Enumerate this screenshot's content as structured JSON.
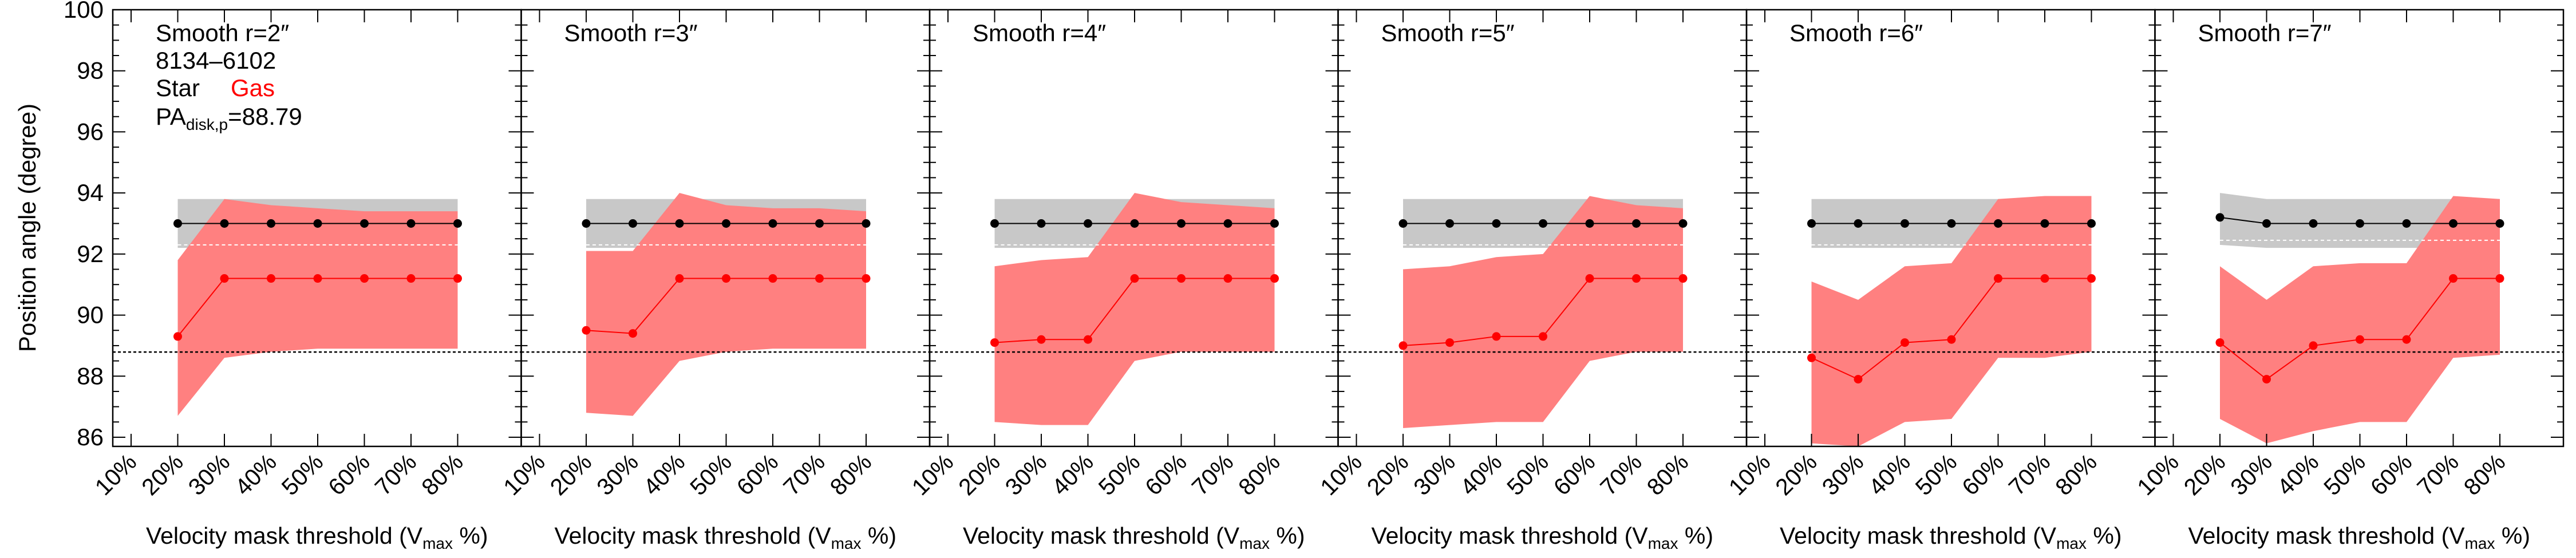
{
  "figure": {
    "ylabel": "Position angle (degree)",
    "xlabel_main": "Velocity mask threshold (V",
    "xlabel_sub": "max",
    "xlabel_tail": " %)",
    "galaxy_id": "8134–6102",
    "legend_star": "Star",
    "legend_gas": "Gas",
    "pa_label_main": "PA",
    "pa_label_sub": "disk,p",
    "pa_label_value": "=88.79"
  },
  "colors": {
    "star": "#000000",
    "gas": "#ff0000",
    "star_band": "#c8c8c8",
    "gas_band": "#ff8080",
    "star_band_mid": "#ffffff"
  },
  "chart_data": {
    "type": "line",
    "x_categories": [
      "10%",
      "20%",
      "30%",
      "40%",
      "50%",
      "60%",
      "70%",
      "80%"
    ],
    "ylim": [
      85.7,
      100
    ],
    "yticks": [
      86,
      88,
      90,
      92,
      94,
      96,
      98,
      100
    ],
    "reference_line": 88.79,
    "panels": [
      {
        "title": "Smooth r=2″",
        "star": {
          "x": [
            "20%",
            "30%",
            "40%",
            "50%",
            "60%",
            "70%",
            "80%"
          ],
          "y": [
            93.0,
            93.0,
            93.0,
            93.0,
            93.0,
            93.0,
            93.0
          ],
          "upper": [
            93.8,
            93.8,
            93.8,
            93.8,
            93.8,
            93.8,
            93.8
          ],
          "lower": [
            92.2,
            92.2,
            92.2,
            92.2,
            92.2,
            92.2,
            92.2
          ]
        },
        "gas": {
          "x": [
            "20%",
            "30%",
            "40%",
            "50%",
            "60%",
            "70%",
            "80%"
          ],
          "y": [
            89.3,
            91.2,
            91.2,
            91.2,
            91.2,
            91.2,
            91.2
          ],
          "upper": [
            91.8,
            93.8,
            93.6,
            93.5,
            93.4,
            93.4,
            93.4
          ],
          "lower": [
            86.7,
            88.6,
            88.8,
            88.9,
            88.9,
            88.9,
            88.9
          ]
        }
      },
      {
        "title": "Smooth r=3″",
        "star": {
          "x": [
            "20%",
            "30%",
            "40%",
            "50%",
            "60%",
            "70%",
            "80%"
          ],
          "y": [
            93.0,
            93.0,
            93.0,
            93.0,
            93.0,
            93.0,
            93.0
          ],
          "upper": [
            93.8,
            93.8,
            93.8,
            93.8,
            93.8,
            93.8,
            93.8
          ],
          "lower": [
            92.2,
            92.2,
            92.2,
            92.2,
            92.2,
            92.2,
            92.2
          ]
        },
        "gas": {
          "x": [
            "20%",
            "30%",
            "40%",
            "50%",
            "60%",
            "70%",
            "80%"
          ],
          "y": [
            89.5,
            89.4,
            91.2,
            91.2,
            91.2,
            91.2,
            91.2
          ],
          "upper": [
            92.1,
            92.1,
            94.0,
            93.6,
            93.5,
            93.5,
            93.4
          ],
          "lower": [
            86.8,
            86.7,
            88.5,
            88.8,
            88.9,
            88.9,
            88.9
          ]
        }
      },
      {
        "title": "Smooth r=4″",
        "star": {
          "x": [
            "20%",
            "30%",
            "40%",
            "50%",
            "60%",
            "70%",
            "80%"
          ],
          "y": [
            93.0,
            93.0,
            93.0,
            93.0,
            93.0,
            93.0,
            93.0
          ],
          "upper": [
            93.8,
            93.8,
            93.8,
            93.8,
            93.8,
            93.8,
            93.8
          ],
          "lower": [
            92.2,
            92.2,
            92.2,
            92.2,
            92.2,
            92.2,
            92.2
          ]
        },
        "gas": {
          "x": [
            "20%",
            "30%",
            "40%",
            "50%",
            "60%",
            "70%",
            "80%"
          ],
          "y": [
            89.1,
            89.2,
            89.2,
            91.2,
            91.2,
            91.2,
            91.2
          ],
          "upper": [
            91.6,
            91.8,
            91.9,
            94.0,
            93.7,
            93.6,
            93.5
          ],
          "lower": [
            86.5,
            86.4,
            86.4,
            88.5,
            88.8,
            88.8,
            88.8
          ]
        }
      },
      {
        "title": "Smooth r=5″",
        "star": {
          "x": [
            "20%",
            "30%",
            "40%",
            "50%",
            "60%",
            "70%",
            "80%"
          ],
          "y": [
            93.0,
            93.0,
            93.0,
            93.0,
            93.0,
            93.0,
            93.0
          ],
          "upper": [
            93.8,
            93.8,
            93.8,
            93.8,
            93.8,
            93.8,
            93.8
          ],
          "lower": [
            92.2,
            92.2,
            92.2,
            92.2,
            92.2,
            92.2,
            92.2
          ]
        },
        "gas": {
          "x": [
            "20%",
            "30%",
            "40%",
            "50%",
            "60%",
            "70%",
            "80%"
          ],
          "y": [
            89.0,
            89.1,
            89.3,
            89.3,
            91.2,
            91.2,
            91.2
          ],
          "upper": [
            91.5,
            91.6,
            91.9,
            92.0,
            93.9,
            93.6,
            93.5
          ],
          "lower": [
            86.3,
            86.4,
            86.5,
            86.5,
            88.5,
            88.8,
            88.8
          ]
        }
      },
      {
        "title": "Smooth r=6″",
        "star": {
          "x": [
            "20%",
            "30%",
            "40%",
            "50%",
            "60%",
            "70%",
            "80%"
          ],
          "y": [
            93.0,
            93.0,
            93.0,
            93.0,
            93.0,
            93.0,
            93.0
          ],
          "upper": [
            93.8,
            93.8,
            93.8,
            93.8,
            93.8,
            93.8,
            93.8
          ],
          "lower": [
            92.2,
            92.2,
            92.2,
            92.2,
            92.2,
            92.2,
            92.2
          ]
        },
        "gas": {
          "x": [
            "20%",
            "30%",
            "40%",
            "50%",
            "60%",
            "70%",
            "80%"
          ],
          "y": [
            88.6,
            87.9,
            89.1,
            89.2,
            91.2,
            91.2,
            91.2
          ],
          "upper": [
            91.1,
            90.5,
            91.6,
            91.7,
            93.8,
            93.9,
            93.9
          ],
          "lower": [
            85.8,
            85.7,
            86.5,
            86.6,
            88.6,
            88.6,
            88.8
          ]
        }
      },
      {
        "title": "Smooth r=7″",
        "star": {
          "x": [
            "20%",
            "30%",
            "40%",
            "50%",
            "60%",
            "70%",
            "80%"
          ],
          "y": [
            93.2,
            93.0,
            93.0,
            93.0,
            93.0,
            93.0,
            93.0
          ],
          "upper": [
            94.0,
            93.8,
            93.8,
            93.8,
            93.8,
            93.8,
            93.8
          ],
          "lower": [
            92.3,
            92.2,
            92.2,
            92.2,
            92.2,
            92.2,
            92.2
          ]
        },
        "gas": {
          "x": [
            "20%",
            "30%",
            "40%",
            "50%",
            "60%",
            "70%",
            "80%"
          ],
          "y": [
            89.1,
            87.9,
            89.0,
            89.2,
            89.2,
            91.2,
            91.2
          ],
          "upper": [
            91.6,
            90.5,
            91.6,
            91.7,
            91.7,
            93.9,
            93.8
          ],
          "lower": [
            86.6,
            85.8,
            86.2,
            86.5,
            86.5,
            88.6,
            88.7
          ]
        }
      }
    ]
  }
}
